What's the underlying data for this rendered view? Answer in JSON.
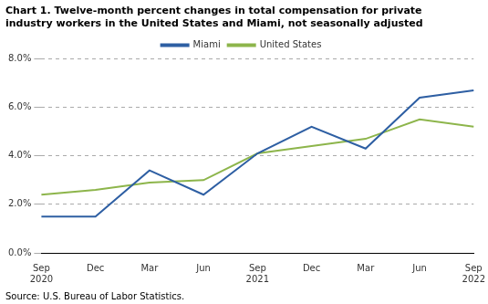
{
  "chart_data": {
    "type": "line",
    "title": "Chart 1. Twelve-month percent changes in total compensation for private\nindustry workers in the United States and Miami, not seasonally adjusted",
    "source": "Source: U.S. Bureau of Labor Statistics.",
    "categories": [
      "Sep\n2020",
      "Dec",
      "Mar",
      "Jun",
      "Sep\n2021",
      "Dec",
      "Mar",
      "Jun",
      "Sep\n2022"
    ],
    "series": [
      {
        "name": "Miami",
        "color": "#2E5FA3",
        "values": [
          1.5,
          1.5,
          3.4,
          2.4,
          4.1,
          5.2,
          4.3,
          6.4,
          6.7
        ]
      },
      {
        "name": "United States",
        "color": "#8DB54B",
        "values": [
          2.4,
          2.6,
          2.9,
          3.0,
          4.1,
          4.4,
          4.7,
          5.5,
          5.2
        ]
      }
    ],
    "ylim": [
      0.0,
      8.0
    ],
    "yticks": [
      {
        "value": 0.0,
        "label": "0.0%"
      },
      {
        "value": 2.0,
        "label": "2.0%"
      },
      {
        "value": 4.0,
        "label": "4.0%"
      },
      {
        "value": 6.0,
        "label": "6.0%"
      },
      {
        "value": 8.0,
        "label": "8.0%"
      }
    ],
    "grid": true,
    "legend": "top"
  }
}
